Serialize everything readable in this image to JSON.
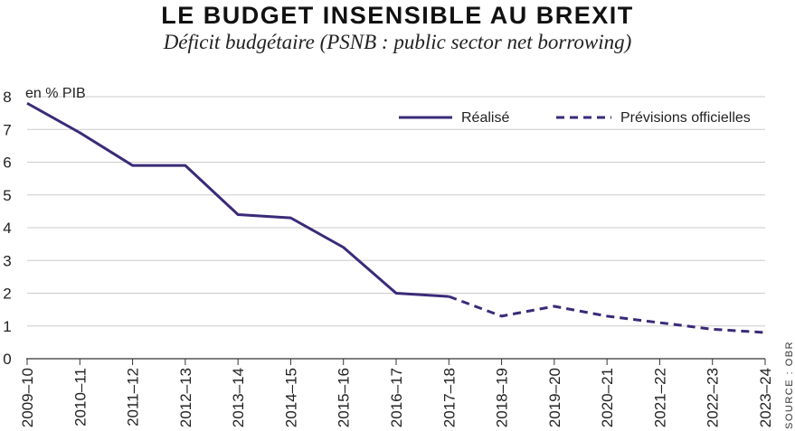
{
  "header": {
    "title": "LE BUDGET INSENSIBLE AU BREXIT",
    "subtitle": "Déficit budgétaire (PSNB : public sector net borrowing)"
  },
  "source": "SOURCE : OBR",
  "colors": {
    "series": "#3b2a78",
    "grid": "#cccccc",
    "axis": "#333333"
  },
  "chart_data": {
    "type": "line",
    "ylabel": "en % PIB",
    "ylim": [
      0,
      8
    ],
    "yticks": [
      0,
      1,
      2,
      3,
      4,
      5,
      6,
      7,
      8
    ],
    "grid": true,
    "legend_position": "top-right",
    "categories": [
      "2009–10",
      "2010–11",
      "2011–12",
      "2012–13",
      "2013–14",
      "2014–15",
      "2015–16",
      "2016–17",
      "2017–18",
      "2018–19",
      "2019–20",
      "2020–21",
      "2021–22",
      "2022–23",
      "2023–24"
    ],
    "series": [
      {
        "name": "Réalisé",
        "style": "solid",
        "points": [
          {
            "x": "2009–10",
            "y": 7.8
          },
          {
            "x": "2010–11",
            "y": 6.9
          },
          {
            "x": "2011–12",
            "y": 5.9
          },
          {
            "x": "2012–13",
            "y": 5.9
          },
          {
            "x": "2013–14",
            "y": 4.4
          },
          {
            "x": "2014–15",
            "y": 4.3
          },
          {
            "x": "2015–16",
            "y": 3.4
          },
          {
            "x": "2016–17",
            "y": 2.0
          },
          {
            "x": "2017–18",
            "y": 1.9
          }
        ]
      },
      {
        "name": "Prévisions officielles",
        "style": "dashed",
        "points": [
          {
            "x": "2017–18",
            "y": 1.9
          },
          {
            "x": "2018–19",
            "y": 1.3
          },
          {
            "x": "2019–20",
            "y": 1.6
          },
          {
            "x": "2020–21",
            "y": 1.3
          },
          {
            "x": "2021–22",
            "y": 1.1
          },
          {
            "x": "2022–23",
            "y": 0.9
          },
          {
            "x": "2023–24",
            "y": 0.8
          }
        ]
      }
    ]
  }
}
